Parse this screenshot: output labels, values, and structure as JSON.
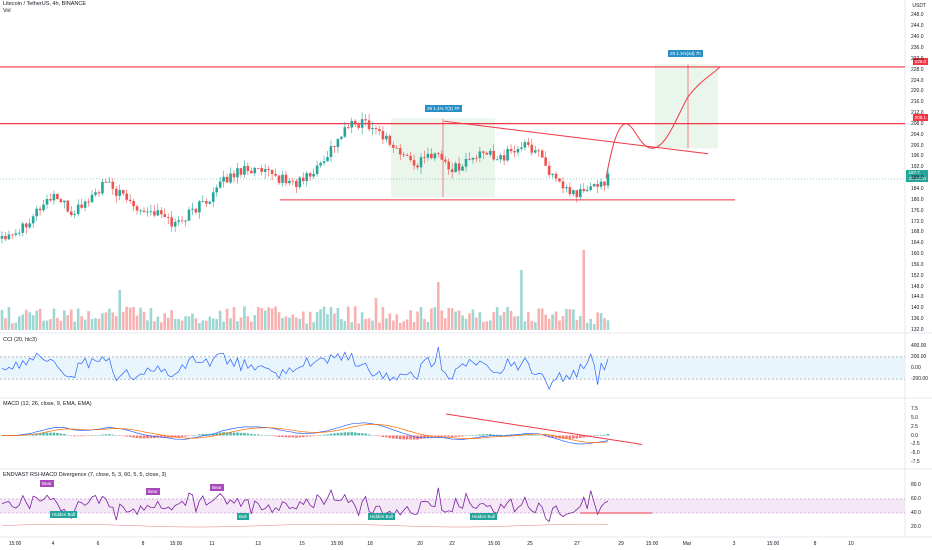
{
  "header": {
    "symbol_title": "Litecoin / TetherUS, 4h, BINANCE",
    "vol_label": "Vol",
    "currency": "USDT"
  },
  "indicators": {
    "cci_label": "CCI (20, hlc3)",
    "macd_label": "MACD (12, 26, close, 9, EMA, EMA)",
    "div_label": "ENDVAST RSI-MACD Divergence (7, close, 5, 3, 60, 5, 5, close, 3)",
    "bear_label": "Bear",
    "bull_label": "Bull",
    "hidden_bull_label": "Hidden Bull"
  },
  "annotations": {
    "box1_label": "29 1.1% 7(3) 7P",
    "box2_label": "29 1.1%(4d) 7h"
  },
  "price_tags": {
    "top": "229.0",
    "mid": "208.1",
    "current": "187.7",
    "current_sub": "22:15:00"
  },
  "colors": {
    "bull": "#26a69a",
    "bear": "#ef5350",
    "trend": "#f23645",
    "cci": "#2962ff",
    "macd": "#2962ff",
    "signal": "#ff6d00",
    "rsi": "#7b1fa2",
    "band": "#e3f2fd",
    "green_box": "#e8f5e9"
  },
  "chart_data": {
    "type": "candlestick",
    "title": "Litecoin / TetherUS, 4h, BINANCE",
    "price_axis": {
      "ticks": [
        "248.0",
        "244.0",
        "240.0",
        "236.0",
        "232.0",
        "228.0",
        "224.0",
        "220.0",
        "216.0",
        "212.0",
        "208.0",
        "204.0",
        "200.0",
        "196.0",
        "192.0",
        "188.0",
        "184.0",
        "180.0",
        "176.0",
        "172.0",
        "168.0",
        "164.0",
        "160.0",
        "156.0",
        "152.0",
        "148.0",
        "144.0",
        "140.0",
        "136.0",
        "132.0"
      ],
      "range": [
        132,
        250
      ]
    },
    "x_axis": {
      "ticks": [
        "15:00",
        "4",
        "6",
        "8",
        "15:00",
        "11",
        "13",
        "15",
        "15:00",
        "18",
        "20",
        "22",
        "15:00",
        "25",
        "27",
        "29",
        "15:00",
        "Mar",
        "3",
        "15:00",
        "8",
        "10"
      ]
    },
    "cci_axis": {
      "ticks": [
        "400.00",
        "200.00",
        "0.00",
        "-200.00"
      ]
    },
    "macd_axis": {
      "ticks": [
        "7.5",
        "5.0",
        "2.5",
        "0.0",
        "-2.5",
        "-5.0",
        "-7.5"
      ]
    },
    "div_axis": {
      "ticks": [
        "80.0",
        "60.0",
        "40.0",
        "20.0"
      ]
    },
    "horizontal_levels": [
      229.0,
      208.1,
      180.0
    ],
    "key_closes": [
      167,
      169,
      176,
      182,
      175,
      180,
      186,
      181,
      177,
      175,
      171,
      176,
      181,
      188,
      192,
      190,
      188,
      186,
      190,
      199,
      207,
      209,
      204,
      197,
      193,
      198,
      191,
      195,
      197,
      196,
      200,
      198,
      186,
      182,
      184,
      188
    ]
  }
}
